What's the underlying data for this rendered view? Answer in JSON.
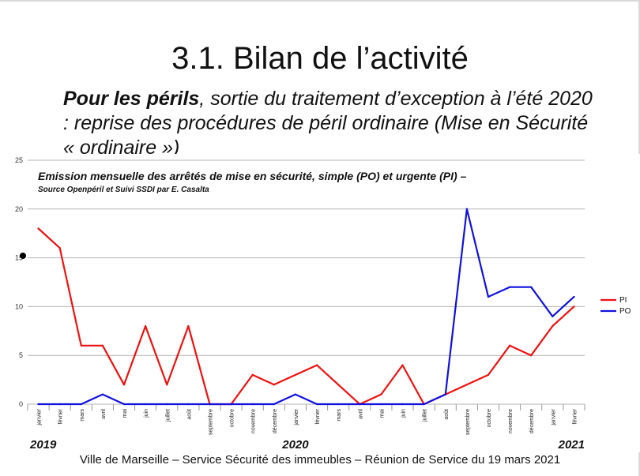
{
  "slide": {
    "title": "3.1. Bilan de l’activité",
    "subtitle_bold": "Pour les périls",
    "subtitle_rest": ", sortie du traitement d’exception à l’été 2020 : reprise des procédures de péril ordinaire (Mise en Sécurité « ordinaire »)",
    "footer": "Ville de Marseille – Service Sécurité des immeubles – Réunion de Service du 19 mars 2021"
  },
  "chart_data": {
    "type": "line",
    "title": "Emission mensuelle des arrêtés de mise en sécurité, simple (PO) et urgente (PI) –",
    "subtitle": "Source Openpéril et Suivi SSDI par E. Casalta",
    "categories": [
      "janvier",
      "février",
      "mars",
      "avril",
      "mai",
      "juin",
      "juillet",
      "août",
      "septembre",
      "octobre",
      "novembre",
      "décembre",
      "janvier",
      "février",
      "mars",
      "avril",
      "mai",
      "juin",
      "juillet",
      "août",
      "septembre",
      "octobre",
      "novembre",
      "décembre",
      "janvier",
      "février"
    ],
    "year_labels": [
      {
        "label": "2019",
        "index": 0
      },
      {
        "label": "2020",
        "index": 12
      },
      {
        "label": "2021",
        "index": 25
      }
    ],
    "yticks": [
      "0",
      "5",
      "10",
      "15",
      "20",
      "25"
    ],
    "ylim": [
      0,
      25
    ],
    "grid": true,
    "legend": "right",
    "series": [
      {
        "name": "PI",
        "color": "#ee1111",
        "values": [
          18,
          16,
          6,
          6,
          2,
          8,
          2,
          8,
          0,
          0,
          3,
          2,
          3,
          4,
          2,
          0,
          1,
          4,
          0,
          1,
          2,
          3,
          6,
          5,
          8,
          10
        ]
      },
      {
        "name": "PO",
        "color": "#1111dd",
        "values": [
          0,
          0,
          0,
          1,
          0,
          0,
          0,
          0,
          0,
          0,
          0,
          0,
          1,
          0,
          0,
          0,
          0,
          0,
          0,
          1,
          20,
          11,
          12,
          12,
          9,
          11
        ]
      }
    ]
  }
}
